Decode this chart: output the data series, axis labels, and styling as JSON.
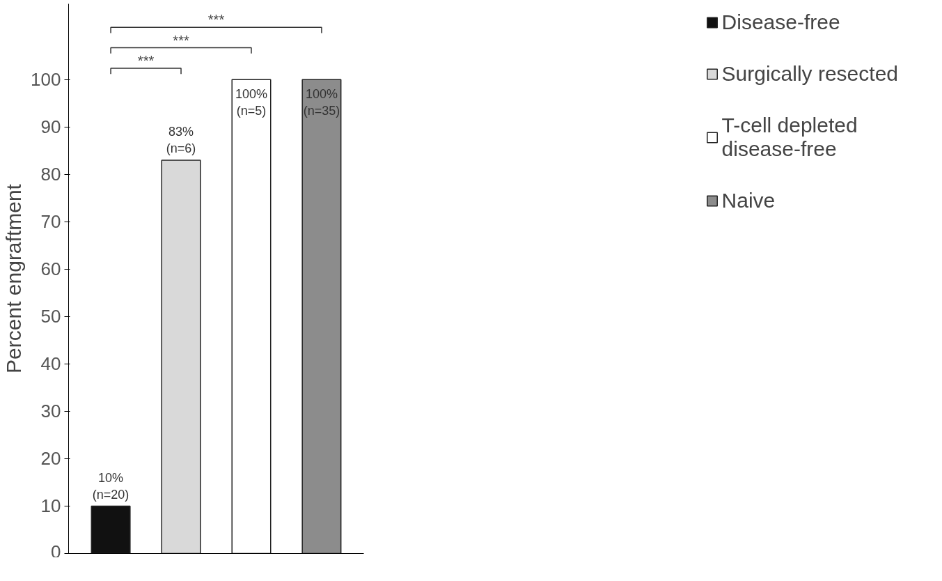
{
  "chart_data": {
    "type": "bar",
    "ylabel": "Percent engraftment",
    "categories": [
      null,
      null,
      null,
      null
    ],
    "series": [
      {
        "name": "Disease-free",
        "color": "#111111",
        "values": [
          10,
          null,
          null,
          null
        ],
        "value_labels": [
          "10%\n(n=20)",
          null,
          null,
          null
        ]
      },
      {
        "name": "Surgically resected",
        "color": "#d9d9d9",
        "values": [
          null,
          83,
          null,
          null
        ],
        "value_labels": [
          null,
          "83%\n(n=6)",
          null,
          null
        ]
      },
      {
        "name": "T-cell depleted\ndisease-free",
        "color": "#ffffff",
        "values": [
          null,
          null,
          100,
          null
        ],
        "value_labels": [
          null,
          null,
          "100%\n(n=5)",
          null
        ]
      },
      {
        "name": "Naive",
        "color": "#8c8c8c",
        "values": [
          null,
          null,
          null,
          100
        ],
        "value_labels": [
          null,
          null,
          null,
          "100%\n(n=35)"
        ]
      }
    ],
    "ylim": [
      0,
      116
    ],
    "yticks": [
      0,
      10,
      20,
      30,
      40,
      50,
      60,
      70,
      80,
      90,
      100
    ],
    "annotations": [
      "***",
      "***",
      "***"
    ],
    "grid": false,
    "legend": "right"
  }
}
